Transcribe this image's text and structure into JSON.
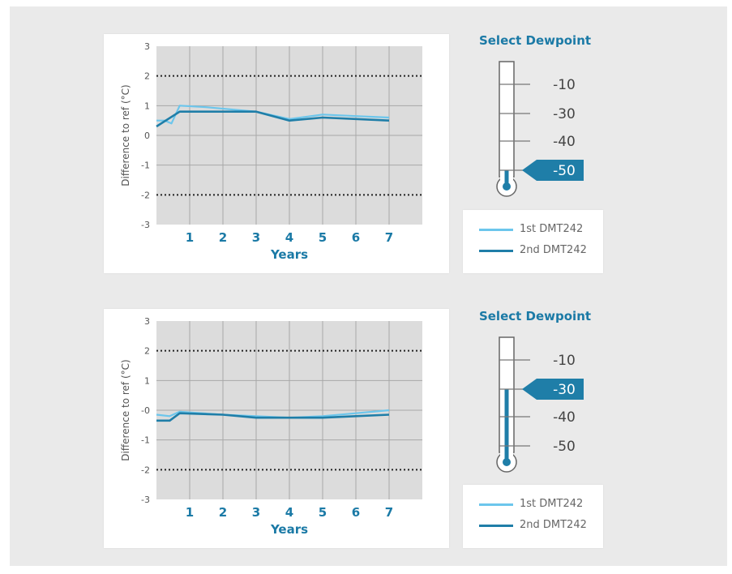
{
  "colors": {
    "series_1": "#6cc6ec",
    "series_2": "#1f7ea8",
    "accent": "#1b7aa6",
    "plot_bg": "#dcdcdc",
    "page_bg": "#eaeaea"
  },
  "chart_data": [
    {
      "type": "line",
      "title": "",
      "xlabel": "Years",
      "ylabel": "Difference to ref (°C)",
      "xlim": [
        0,
        8
      ],
      "ylim": [
        -3,
        3
      ],
      "x_ticks": [
        1,
        2,
        3,
        4,
        5,
        6,
        7
      ],
      "y_ticks": [
        3,
        2,
        1,
        0,
        -1,
        -2,
        -3
      ],
      "y_tick_labels": [
        "3",
        "2",
        "1",
        "0",
        "-1",
        "-2",
        "-3"
      ],
      "reference_lines": [
        2,
        -2
      ],
      "grid": true,
      "legend_position": "right",
      "dewpoint_selected": "-50",
      "series": [
        {
          "name": "1st DMT242",
          "color": "#6cc6ec",
          "x": [
            0,
            0.25,
            0.45,
            0.7,
            1.5,
            3,
            4,
            5,
            6,
            7
          ],
          "y": [
            0.5,
            0.5,
            0.4,
            1.0,
            0.95,
            0.8,
            0.55,
            0.7,
            0.65,
            0.6
          ]
        },
        {
          "name": "2nd DMT242",
          "color": "#1f7ea8",
          "x": [
            0,
            0.7,
            1.5,
            3,
            4,
            5,
            6,
            7
          ],
          "y": [
            0.3,
            0.8,
            0.8,
            0.8,
            0.5,
            0.6,
            0.55,
            0.5
          ]
        }
      ]
    },
    {
      "type": "line",
      "title": "",
      "xlabel": "Years",
      "ylabel": "Difference to ref (°C)",
      "xlim": [
        0,
        8
      ],
      "ylim": [
        -3,
        3
      ],
      "x_ticks": [
        1,
        2,
        3,
        4,
        5,
        6,
        7
      ],
      "y_ticks": [
        3,
        2,
        1,
        0,
        -1,
        -2,
        -3
      ],
      "y_tick_labels": [
        "3",
        "2",
        "1",
        "-0",
        "-1",
        "-2",
        "-3"
      ],
      "reference_lines": [
        2,
        -2
      ],
      "grid": true,
      "legend_position": "right",
      "dewpoint_selected": "-30",
      "series": [
        {
          "name": "1st DMT242",
          "color": "#6cc6ec",
          "x": [
            0,
            0.4,
            0.7,
            2,
            3,
            4,
            5,
            6,
            7
          ],
          "y": [
            -0.15,
            -0.2,
            -0.05,
            -0.15,
            -0.2,
            -0.25,
            -0.2,
            -0.1,
            0.0
          ]
        },
        {
          "name": "2nd DMT242",
          "color": "#1f7ea8",
          "x": [
            0,
            0.4,
            0.7,
            2,
            3,
            4,
            5,
            6,
            7
          ],
          "y": [
            -0.35,
            -0.35,
            -0.1,
            -0.15,
            -0.25,
            -0.25,
            -0.25,
            -0.2,
            -0.15
          ]
        }
      ]
    }
  ],
  "dewpoint_selectors": [
    {
      "title": "Select Dewpoint",
      "options": [
        "-10",
        "-30",
        "-40",
        "-50"
      ],
      "selected": "-50"
    },
    {
      "title": "Select Dewpoint",
      "options": [
        "-10",
        "-30",
        "-40",
        "-50"
      ],
      "selected": "-30"
    }
  ]
}
